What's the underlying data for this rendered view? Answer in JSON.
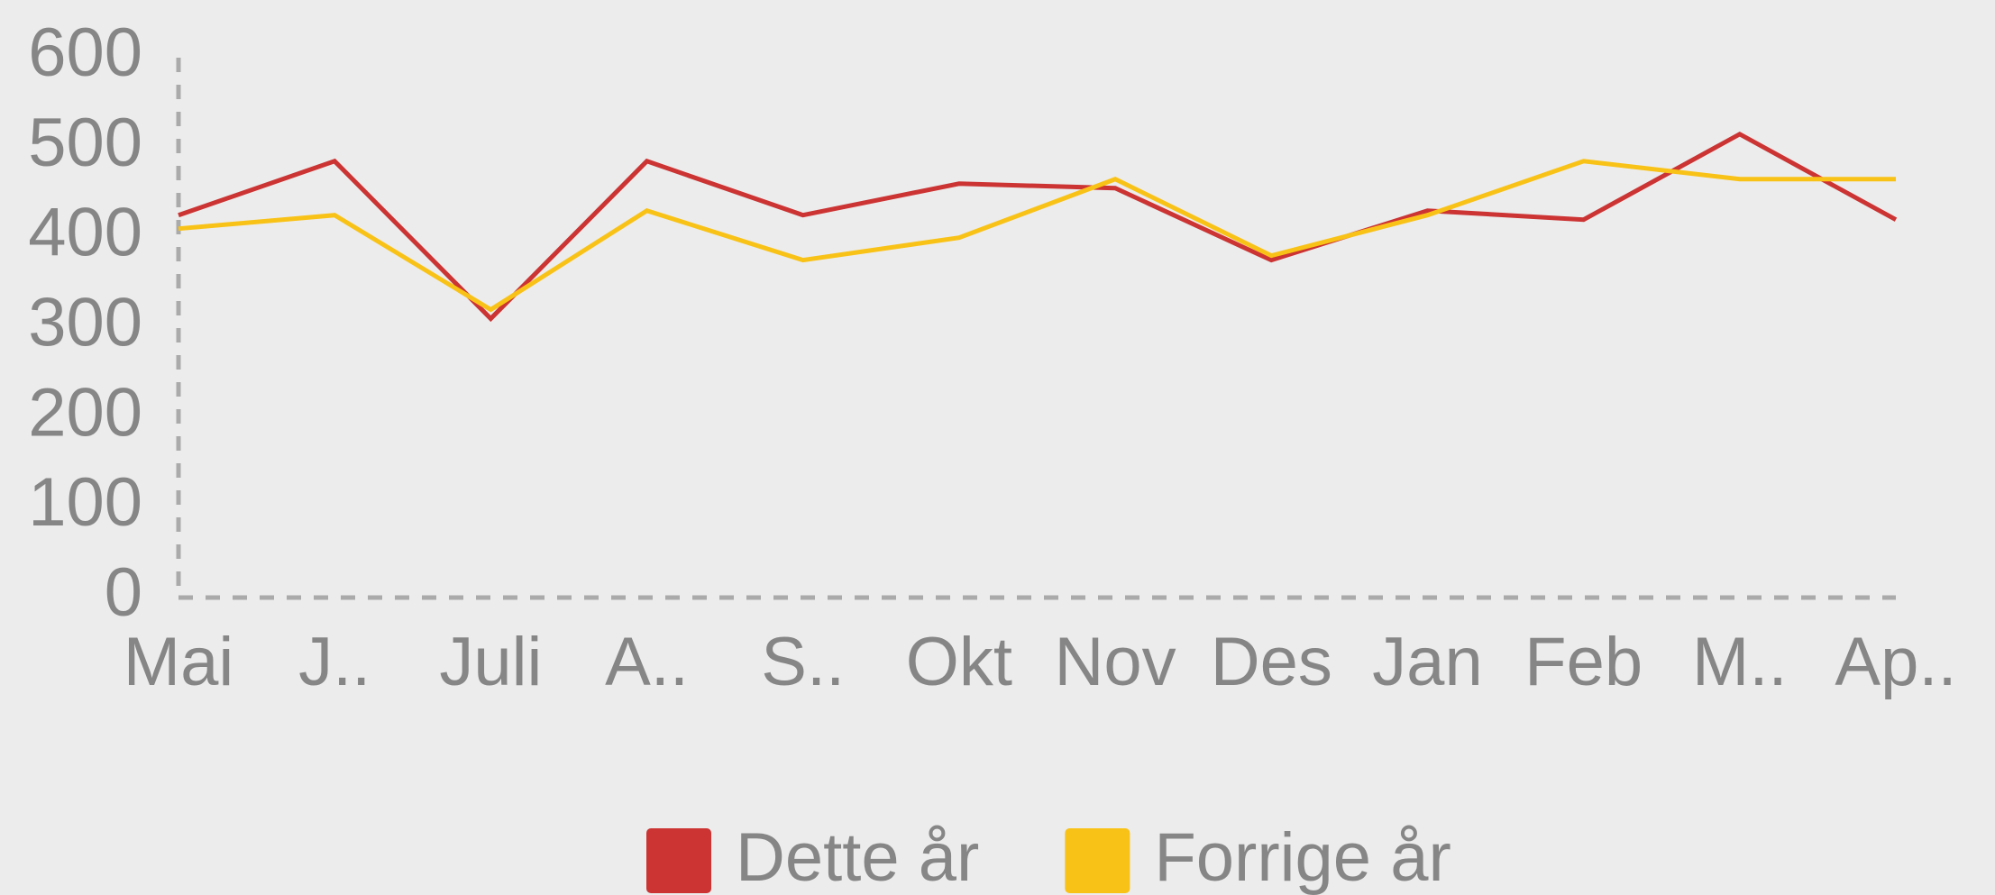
{
  "chart_data": {
    "type": "line",
    "categories": [
      "Mai",
      "J..",
      "Juli",
      "A..",
      "S..",
      "Okt",
      "Nov",
      "Des",
      "Jan",
      "Feb",
      "M..",
      "Ap.."
    ],
    "series": [
      {
        "name": "Dette år",
        "color": "#cc3333",
        "values": [
          425,
          485,
          310,
          485,
          425,
          460,
          455,
          375,
          430,
          420,
          515,
          420
        ]
      },
      {
        "name": "Forrige år",
        "color": "#f9c216",
        "values": [
          410,
          425,
          320,
          430,
          375,
          400,
          465,
          380,
          425,
          485,
          465,
          465
        ]
      }
    ],
    "ylim": [
      0,
      600
    ],
    "yticks": [
      0,
      100,
      200,
      300,
      400,
      500,
      600
    ],
    "grid": false,
    "legend": "bottom"
  }
}
